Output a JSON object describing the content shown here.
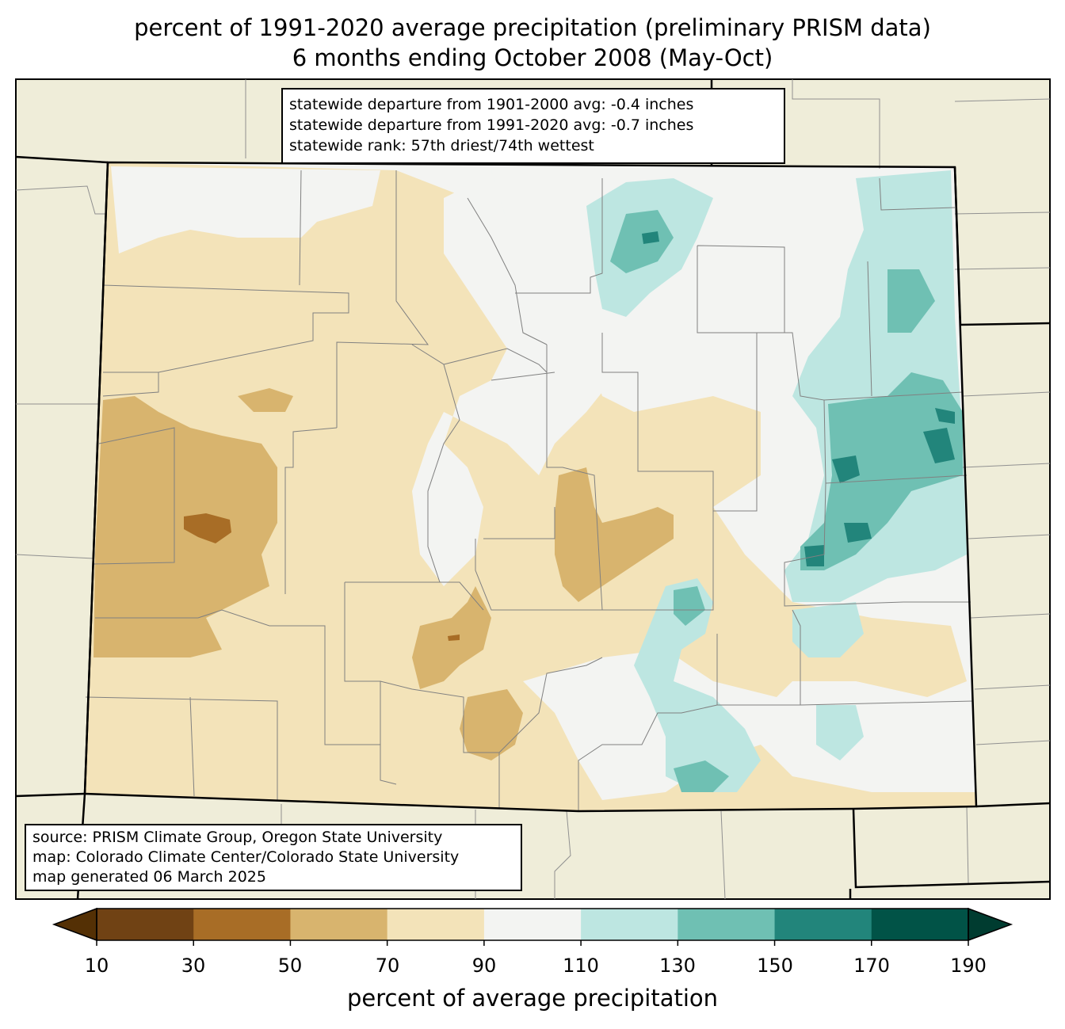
{
  "title_line1": "percent of 1991-2020 average precipitation (preliminary PRISM data)",
  "title_line2": "6 months ending October 2008 (May-Oct)",
  "stats": [
    "statewide departure from 1901-2000 avg: -0.4 inches",
    "statewide departure from 1991-2020 avg: -0.7 inches",
    "statewide rank: 57th driest/74th wettest"
  ],
  "source": [
    "source: PRISM Climate Group, Oregon State University",
    "map: Colorado Climate Center/Colorado State University",
    "map generated 06 March 2025"
  ],
  "colorbar": {
    "label": "percent of average precipitation",
    "ticks": [
      "10",
      "30",
      "50",
      "70",
      "90",
      "110",
      "130",
      "150",
      "170",
      "190"
    ],
    "colors": [
      "#704214",
      "#a86d26",
      "#d8b46e",
      "#f3e3b9",
      "#f3f4f2",
      "#bde6e1",
      "#6fc0b3",
      "#22857b",
      "#015347"
    ],
    "under_color": "#543005",
    "over_color": "#003c30"
  },
  "colors": {
    "land_outside": "#efedd9",
    "county_line": "#808080",
    "state_line": "#000000"
  }
}
